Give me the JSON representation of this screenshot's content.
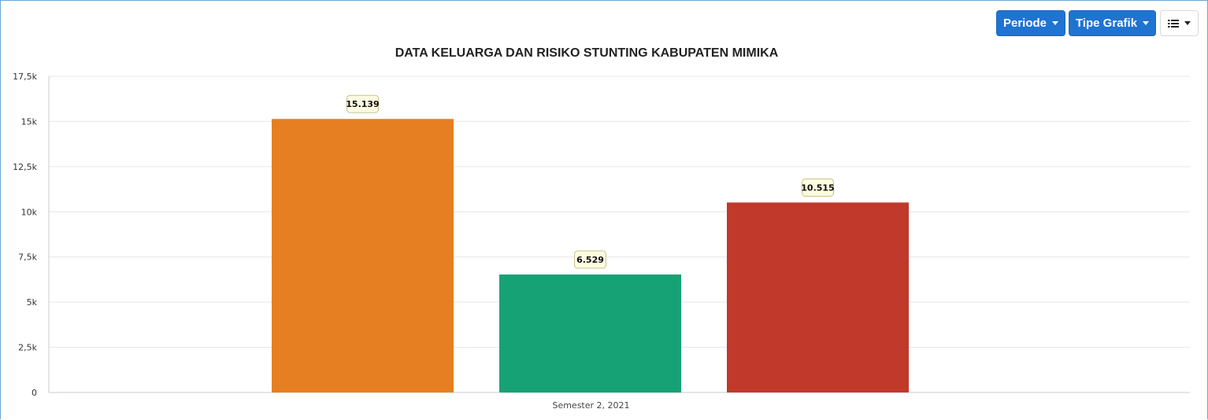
{
  "toolbar": {
    "periode_label": "Periode",
    "tipe_grafik_label": "Tipe Grafik",
    "menu_icon": "list-icon"
  },
  "chart_data": {
    "type": "bar",
    "title": "DATA KELUARGA DAN RISIKO STUNTING KABUPATEN MIMIKA",
    "categories": [
      "Semester 2, 2021"
    ],
    "series": [
      {
        "values": [
          15139
        ],
        "color": "#e67e22",
        "label": "15.139"
      },
      {
        "values": [
          6529
        ],
        "color": "#16a275",
        "label": "6.529"
      },
      {
        "values": [
          10515
        ],
        "color": "#c0392b",
        "label": "10.515"
      }
    ],
    "ylim": [
      0,
      17500
    ],
    "y_ticks": [
      0,
      2500,
      5000,
      7500,
      10000,
      12500,
      15000,
      17500
    ],
    "y_tick_labels": [
      "0",
      "2,5k",
      "5k",
      "7,5k",
      "10k",
      "12,5k",
      "15k",
      "17,5k"
    ],
    "xlabel": "",
    "ylabel": "",
    "grid": true,
    "legend": "none"
  }
}
